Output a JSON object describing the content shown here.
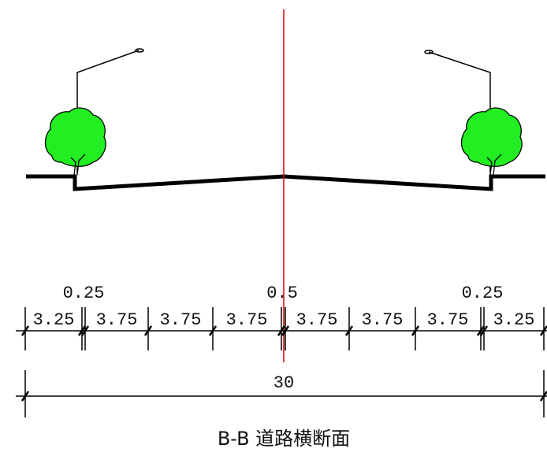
{
  "lane_widths": [
    "3.25",
    "3.75",
    "3.75",
    "3.75",
    "3.75",
    "3.75",
    "3.75",
    "3.25"
  ],
  "strip_widths": [
    "0.25",
    "0.5",
    "0.25"
  ],
  "total_width": "30",
  "caption": "B-B 道路横断面"
}
